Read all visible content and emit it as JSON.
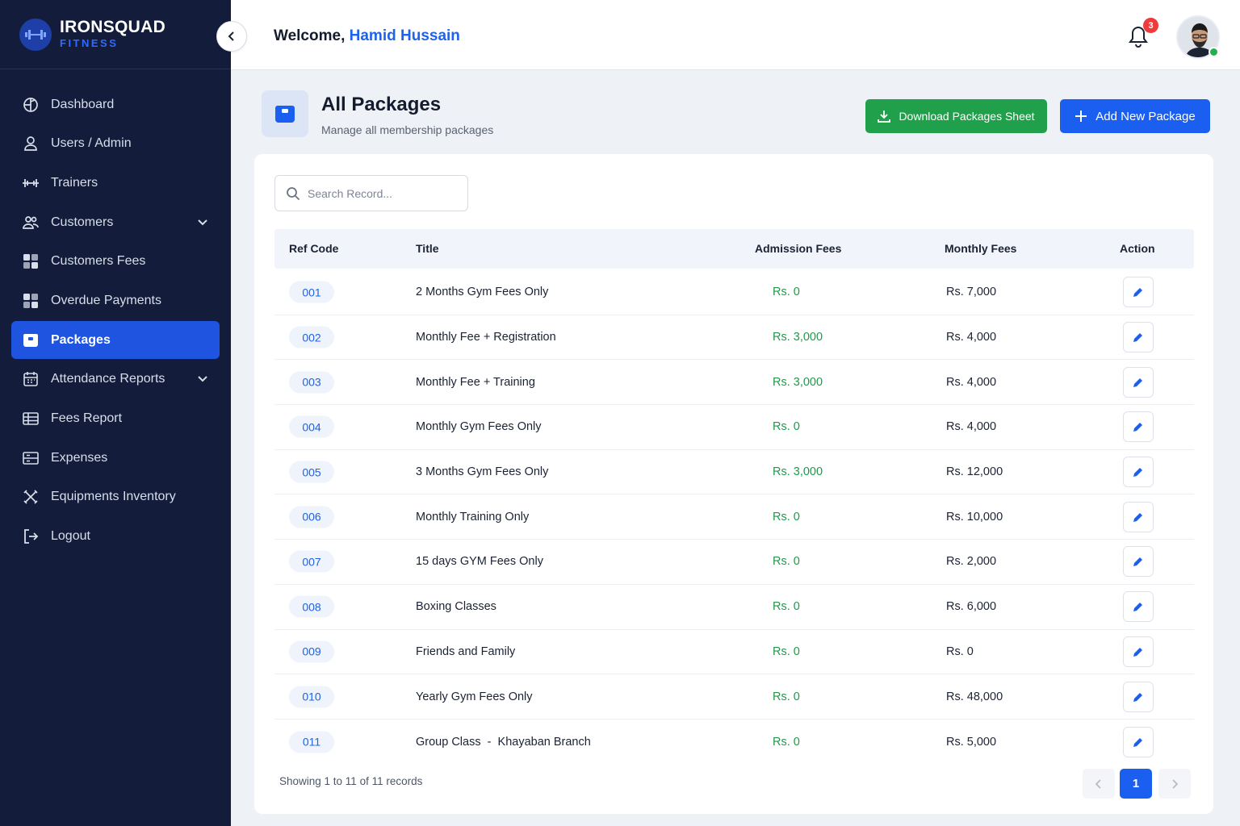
{
  "brand": {
    "name": "IRONSQUAD",
    "sub": "FITNESS"
  },
  "sidebar": {
    "items": [
      {
        "label": "Dashboard",
        "icon": "dashboard-icon"
      },
      {
        "label": "Users / Admin",
        "icon": "user-icon"
      },
      {
        "label": "Trainers",
        "icon": "dumbbell-icon"
      },
      {
        "label": "Customers",
        "icon": "users-icon",
        "expandable": true
      },
      {
        "label": "Customers Fees",
        "icon": "grid-icon"
      },
      {
        "label": "Overdue Payments",
        "icon": "grid-icon"
      },
      {
        "label": "Packages",
        "icon": "package-icon",
        "active": true
      },
      {
        "label": "Attendance Reports",
        "icon": "calendar-icon",
        "expandable": true
      },
      {
        "label": "Fees Report",
        "icon": "table-icon"
      },
      {
        "label": "Expenses",
        "icon": "list-icon"
      },
      {
        "label": "Equipments Inventory",
        "icon": "tools-icon"
      },
      {
        "label": "Logout",
        "icon": "logout-icon"
      }
    ]
  },
  "header": {
    "welcome_prefix": "Welcome,",
    "user_name": "Hamid Hussain",
    "notification_count": "3"
  },
  "page": {
    "title": "All Packages",
    "subtitle": "Manage all membership packages",
    "download_label": "Download Packages Sheet",
    "add_label": "Add New Package"
  },
  "search": {
    "placeholder": "Search Record..."
  },
  "table": {
    "columns": [
      "Ref Code",
      "Title",
      "Admission Fees",
      "Monthly Fees",
      "Action"
    ],
    "rows": [
      {
        "ref": "001",
        "title": "2 Months Gym Fees Only",
        "admission": "Rs. 0",
        "monthly": "Rs. 7,000"
      },
      {
        "ref": "002",
        "title": "Monthly Fee + Registration",
        "admission": "Rs. 3,000",
        "monthly": "Rs. 4,000"
      },
      {
        "ref": "003",
        "title": "Monthly Fee + Training",
        "admission": "Rs. 3,000",
        "monthly": "Rs. 4,000"
      },
      {
        "ref": "004",
        "title": "Monthly Gym Fees Only",
        "admission": "Rs. 0",
        "monthly": "Rs. 4,000"
      },
      {
        "ref": "005",
        "title": "3 Months Gym Fees Only",
        "admission": "Rs. 3,000",
        "monthly": "Rs. 12,000"
      },
      {
        "ref": "006",
        "title": "Monthly Training Only",
        "admission": "Rs. 0",
        "monthly": "Rs. 10,000"
      },
      {
        "ref": "007",
        "title": "15 days GYM Fees Only",
        "admission": "Rs. 0",
        "monthly": "Rs. 2,000"
      },
      {
        "ref": "008",
        "title": "Boxing Classes",
        "admission": "Rs. 0",
        "monthly": "Rs. 6,000"
      },
      {
        "ref": "009",
        "title": "Friends and Family",
        "admission": "Rs. 0",
        "monthly": "Rs. 0"
      },
      {
        "ref": "010",
        "title": "Yearly Gym Fees Only",
        "admission": "Rs. 0",
        "monthly": "Rs. 48,000"
      },
      {
        "ref": "011",
        "title": "Group Class  -  Khayaban Branch",
        "admission": "Rs. 0",
        "monthly": "Rs. 5,000"
      }
    ]
  },
  "footer": {
    "showing": "Showing 1 to 11 of 11 records",
    "current_page": "1"
  },
  "colors": {
    "sidebar": "#131d3b",
    "accent": "#1a5ff0",
    "success": "#20a04b",
    "admission_text": "#1f9a4a",
    "badge": "#ef3b3b"
  }
}
